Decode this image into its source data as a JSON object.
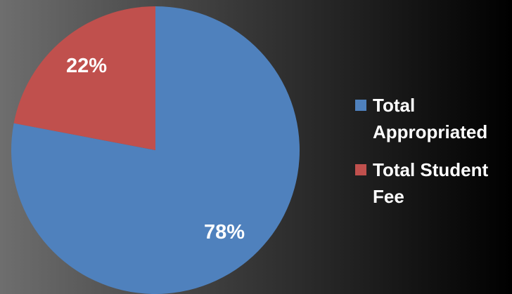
{
  "chart_data": {
    "type": "pie",
    "categories": [
      "Total Appropriated",
      "Total Student Fee"
    ],
    "values": [
      78,
      22
    ],
    "value_labels": [
      "78%",
      "22%"
    ],
    "colors": [
      "#4f81bd",
      "#c0504d"
    ],
    "legend": "right"
  }
}
